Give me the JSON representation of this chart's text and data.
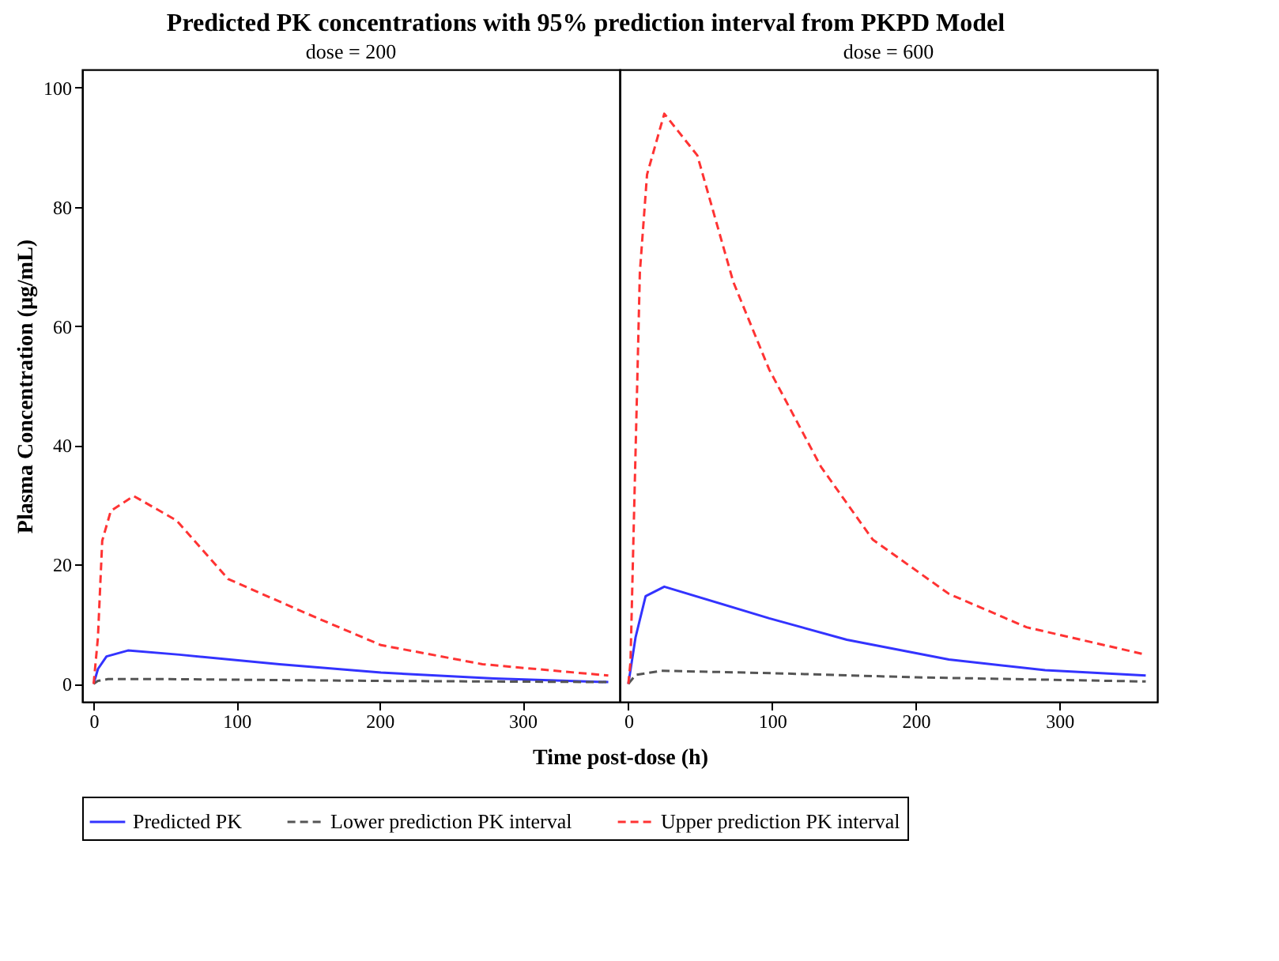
{
  "chart_data": [
    {
      "type": "line",
      "title": "Predicted PK concentrations with 95% prediction interval from PKPD Model",
      "subtitle": "dose = 200",
      "xlabel": "Time post-dose (h)",
      "ylabel": "Plasma Concentration (µg/mL)",
      "xlim": [
        -8,
        368
      ],
      "xticks": [
        0,
        100,
        200,
        300
      ],
      "ylim": [
        -3,
        103
      ],
      "yticks": [
        0,
        20,
        40,
        60,
        80,
        100
      ],
      "grid": false,
      "legend": "bottom",
      "marker": "none",
      "series": [
        {
          "name": "Predicted PK",
          "color": "#3333ff",
          "line_style": "solid",
          "x": [
            0,
            3,
            9,
            24,
            60,
            130,
            201,
            280,
            360
          ],
          "values": [
            0,
            2.5,
            4.6,
            5.6,
            4.9,
            3.3,
            1.9,
            0.9,
            0.3
          ]
        },
        {
          "name": "Lower prediction PK interval",
          "color": "#555555",
          "line_style": "dashed",
          "x": [
            0,
            3,
            10,
            50,
            200,
            360
          ],
          "values": [
            0,
            0.5,
            0.8,
            0.8,
            0.5,
            0.3
          ]
        },
        {
          "name": "Upper prediction PK interval",
          "color": "#ff3333",
          "line_style": "dashed",
          "x": [
            0,
            3,
            6,
            12,
            28,
            58,
            94,
            148,
            201,
            272,
            360
          ],
          "values": [
            0,
            7.8,
            24,
            29,
            31.5,
            27.4,
            17.6,
            11.9,
            6.5,
            3.3,
            1.4
          ]
        }
      ]
    },
    {
      "type": "line",
      "subtitle": "dose = 600",
      "xlim": [
        -6,
        368
      ],
      "xticks": [
        0,
        100,
        200,
        300
      ],
      "ylim": [
        -3,
        103
      ],
      "yticks": [
        0,
        20,
        40,
        60,
        80,
        100
      ],
      "tick_labels": "x",
      "grid": false,
      "marker": "none",
      "series": [
        {
          "color": "#3333ff",
          "line_style": "solid",
          "x": [
            0,
            5,
            12,
            25,
            98,
            152,
            223,
            290,
            360
          ],
          "values": [
            0,
            7.8,
            14.7,
            16.3,
            11,
            7.4,
            4.1,
            2.3,
            1.4
          ]
        },
        {
          "color": "#555555",
          "line_style": "dashed",
          "x": [
            0,
            5,
            23,
            100,
            200,
            360
          ],
          "values": [
            0,
            1.5,
            2.2,
            1.8,
            1.1,
            0.4
          ]
        },
        {
          "color": "#ff3333",
          "line_style": "dashed",
          "x": [
            0,
            1.5,
            3.5,
            6,
            8,
            13,
            25,
            48,
            73,
            98,
            134,
            170,
            223,
            277,
            360
          ],
          "values": [
            0,
            3.7,
            24,
            48.7,
            69,
            85.4,
            95.6,
            88.6,
            67.4,
            52.7,
            36.4,
            24.2,
            15.1,
            9.5,
            4.9
          ]
        }
      ]
    }
  ]
}
